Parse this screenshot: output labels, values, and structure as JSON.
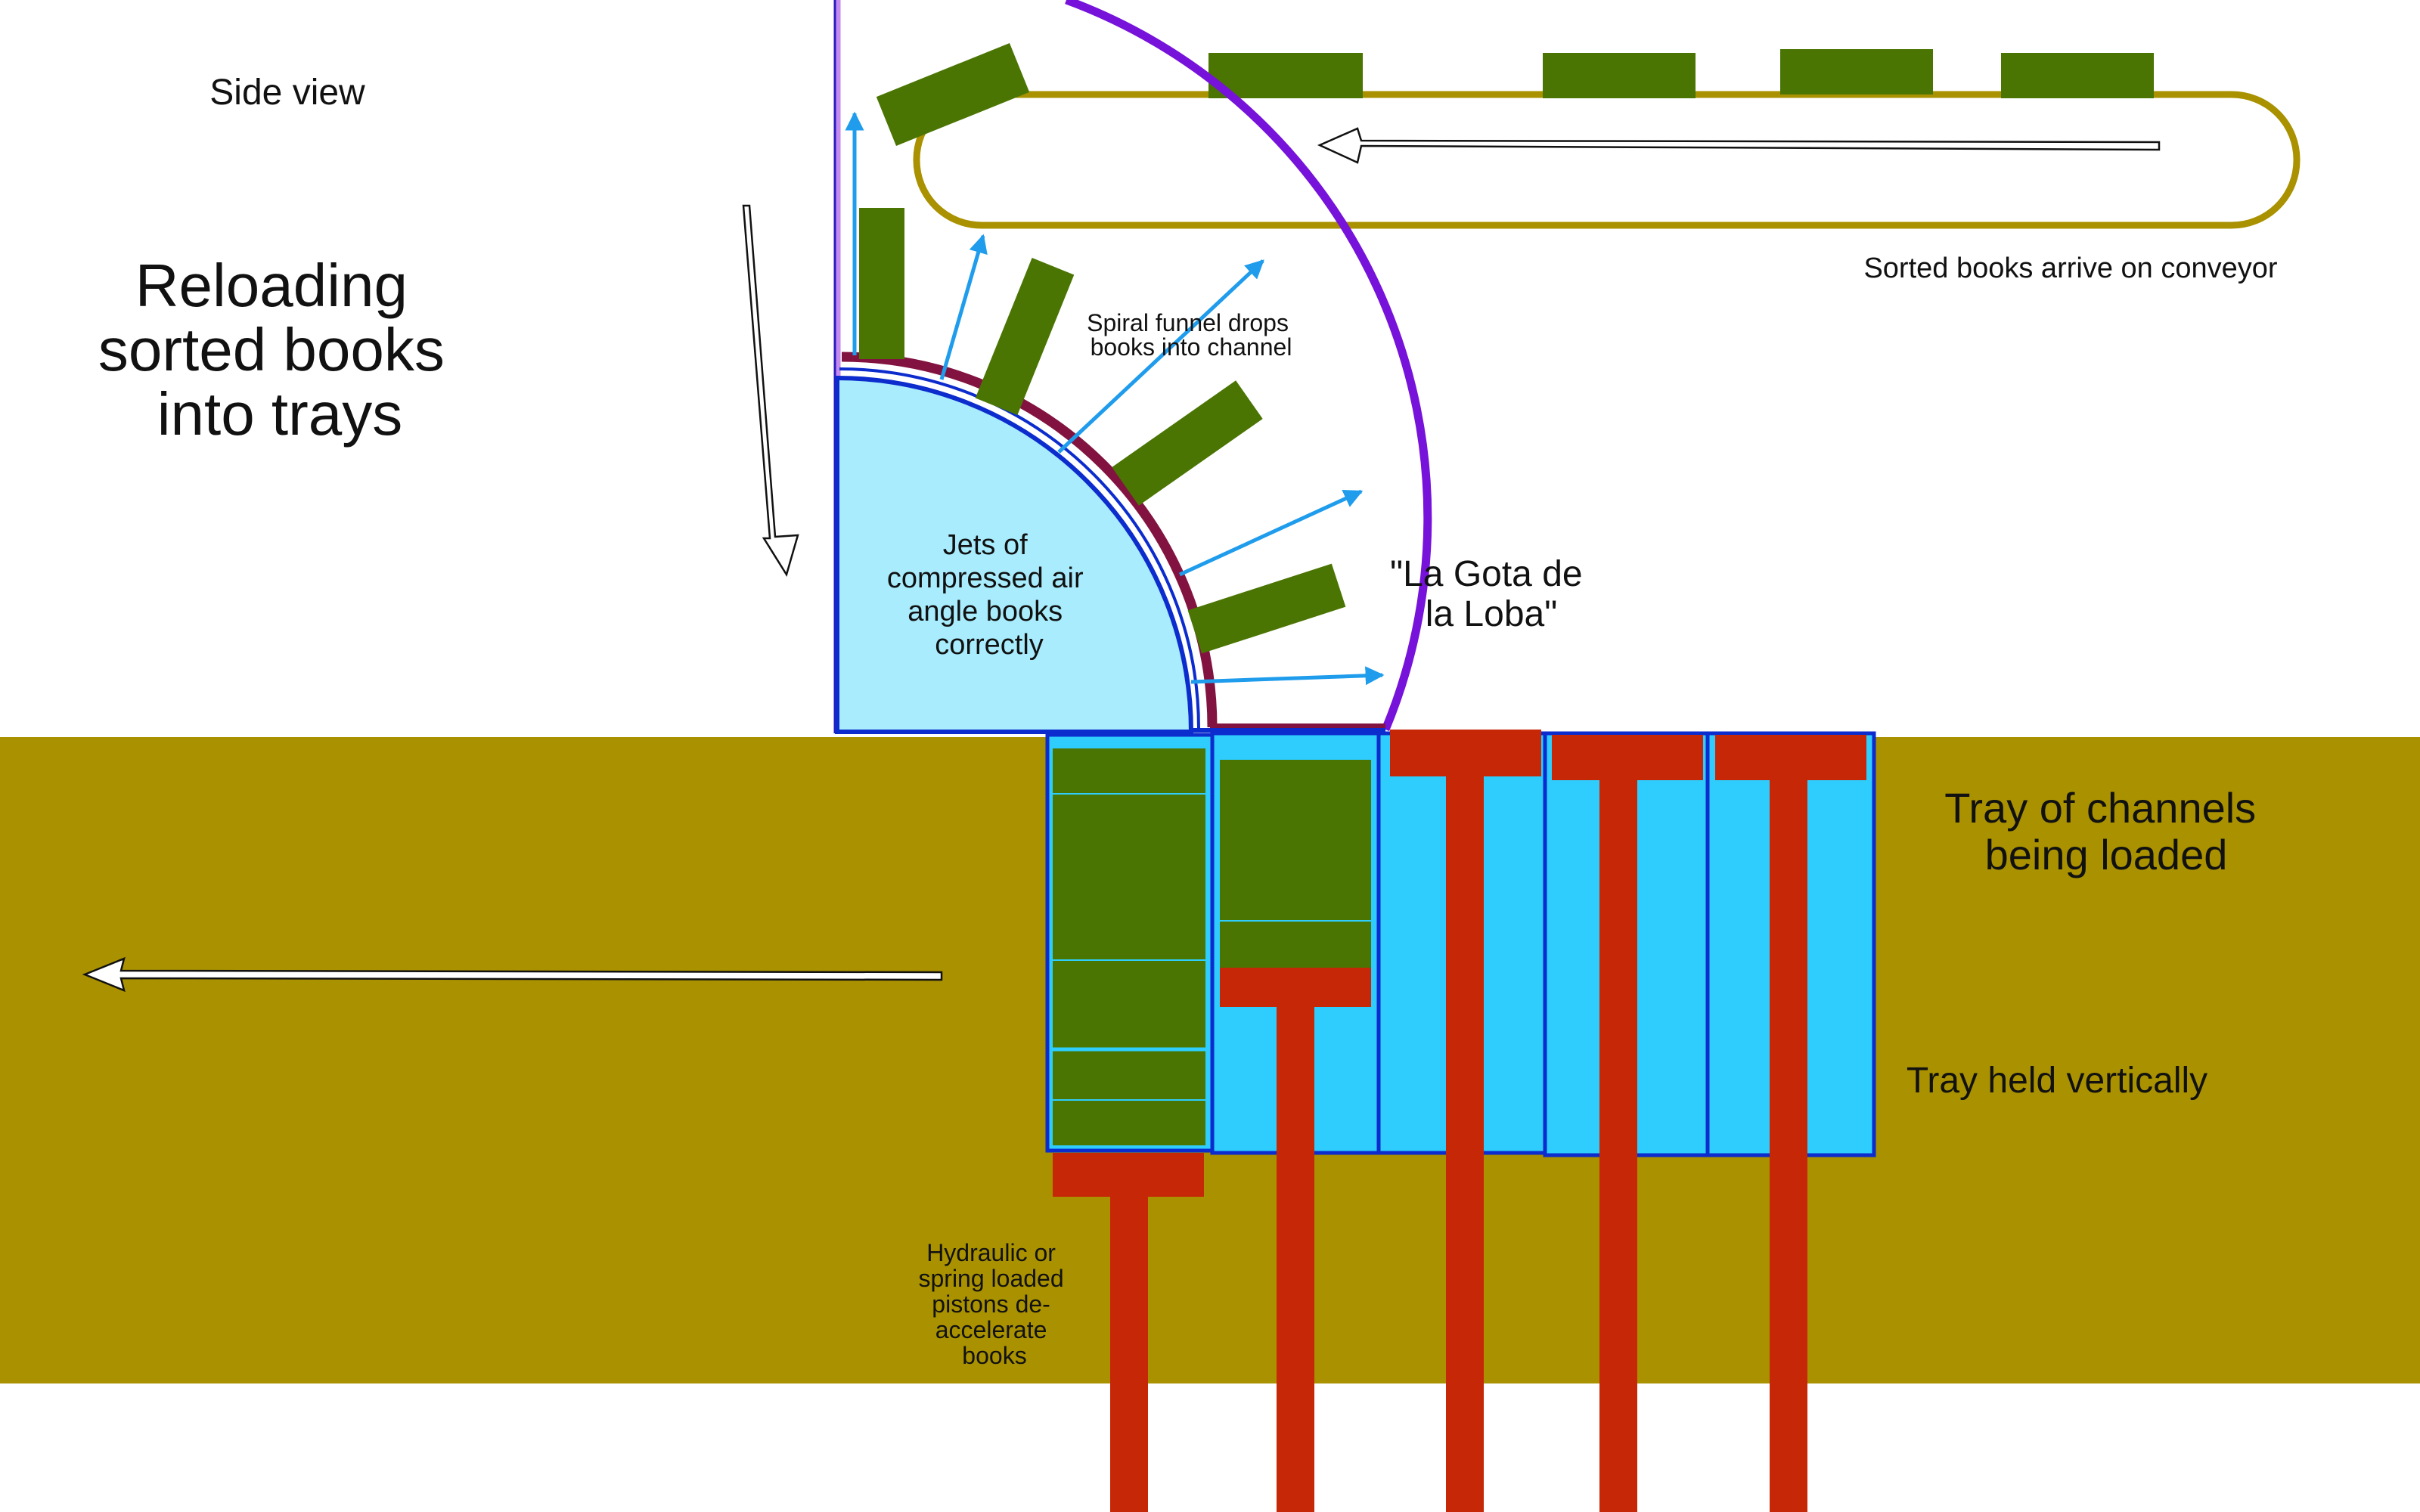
{
  "title": [
    "Reloading",
    "sorted books",
    "into trays"
  ],
  "view_label": "Side view",
  "labels": {
    "conveyor": "Sorted books arrive on conveyor",
    "spiral_funnel": [
      "Spiral funnel  drops",
      "books into channel"
    ],
    "air_jets": [
      "Jets of",
      "compressed air",
      "angle books",
      "correctly"
    ],
    "device_name": [
      "\"La Gota de",
      "la Loba\""
    ],
    "tray_loaded": [
      "Tray of channels",
      "being loaded"
    ],
    "tray_vertical": "Tray held vertically",
    "pistons": [
      "Hydraulic or",
      "spring loaded",
      "pistons de-",
      "accelerate",
      "books"
    ]
  },
  "colors": {
    "ground": "#a99100",
    "book": "#4a7503",
    "tray_channel": "#2ecdfd",
    "channel_border": "#0c2ccd",
    "piston": "#c62706",
    "air_jet": "#1f9cec",
    "air_chamber": "#a8ecfd",
    "funnel": "#7612d9",
    "funnel_light": "#c58af0",
    "inner_rail": "#821340",
    "conveyor_belt": "#a99100"
  }
}
